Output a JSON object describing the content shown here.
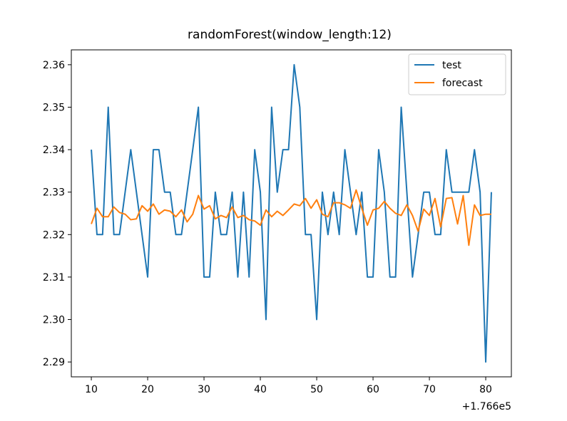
{
  "chart_data": {
    "type": "line",
    "title": "randomForest(window_length:12)",
    "xlabel": "",
    "ylabel": "",
    "x_offset_label": "+1.766e5",
    "xlim": [
      6.45,
      84.55
    ],
    "ylim": [
      2.2865,
      2.3635
    ],
    "xticks": [
      10,
      20,
      30,
      40,
      50,
      60,
      70,
      80
    ],
    "yticks": [
      2.29,
      2.3,
      2.31,
      2.32,
      2.33,
      2.34,
      2.35,
      2.36
    ],
    "ytick_labels": [
      "2.29",
      "2.30",
      "2.31",
      "2.32",
      "2.33",
      "2.34",
      "2.35",
      "2.36"
    ],
    "grid": false,
    "legend_position": "top-right",
    "x": [
      10,
      11,
      12,
      13,
      14,
      15,
      16,
      17,
      18,
      19,
      20,
      21,
      22,
      23,
      24,
      25,
      26,
      27,
      28,
      29,
      30,
      31,
      32,
      33,
      34,
      35,
      36,
      37,
      38,
      39,
      40,
      41,
      42,
      43,
      44,
      45,
      46,
      47,
      48,
      49,
      50,
      51,
      52,
      53,
      54,
      55,
      56,
      57,
      58,
      59,
      60,
      61,
      62,
      63,
      64,
      65,
      66,
      67,
      68,
      69,
      70,
      71,
      72,
      73,
      74,
      75,
      76,
      77,
      78,
      79,
      80,
      81
    ],
    "series": [
      {
        "name": "test",
        "color": "#1f77b4",
        "values": [
          2.34,
          2.32,
          2.32,
          2.35,
          2.32,
          2.32,
          2.33,
          2.34,
          2.33,
          2.32,
          2.31,
          2.34,
          2.34,
          2.33,
          2.33,
          2.32,
          2.32,
          2.33,
          2.34,
          2.35,
          2.31,
          2.31,
          2.33,
          2.32,
          2.32,
          2.33,
          2.31,
          2.33,
          2.31,
          2.34,
          2.33,
          2.3,
          2.35,
          2.33,
          2.34,
          2.34,
          2.36,
          2.35,
          2.32,
          2.32,
          2.3,
          2.33,
          2.32,
          2.33,
          2.32,
          2.34,
          2.33,
          2.32,
          2.33,
          2.31,
          2.31,
          2.34,
          2.33,
          2.31,
          2.31,
          2.35,
          2.33,
          2.31,
          2.32,
          2.33,
          2.33,
          2.32,
          2.32,
          2.34,
          2.33,
          2.33,
          2.33,
          2.33,
          2.34,
          2.33,
          2.29,
          2.33
        ]
      },
      {
        "name": "forecast",
        "color": "#ff7f0e",
        "values": [
          2.3225,
          2.3262,
          2.3242,
          2.3242,
          2.3265,
          2.3252,
          2.3248,
          2.3235,
          2.3237,
          2.3268,
          2.3255,
          2.3272,
          2.3248,
          2.3258,
          2.3255,
          2.3242,
          2.3258,
          2.323,
          2.3248,
          2.3292,
          2.326,
          2.3268,
          2.3237,
          2.3245,
          2.324,
          2.3265,
          2.324,
          2.3245,
          2.3235,
          2.3232,
          2.3222,
          2.3258,
          2.3242,
          2.3255,
          2.3245,
          2.3258,
          2.3272,
          2.3268,
          2.3285,
          2.3262,
          2.3282,
          2.3248,
          2.3242,
          2.3275,
          2.3275,
          2.327,
          2.3262,
          2.3305,
          2.3262,
          2.3222,
          2.3258,
          2.3262,
          2.3278,
          2.3262,
          2.325,
          2.3245,
          2.327,
          2.3245,
          2.3208,
          2.326,
          2.3245,
          2.3285,
          2.3218,
          2.3285,
          2.3287,
          2.3225,
          2.3292,
          2.3175,
          2.327,
          2.3245,
          2.3248,
          2.3248
        ]
      }
    ]
  }
}
